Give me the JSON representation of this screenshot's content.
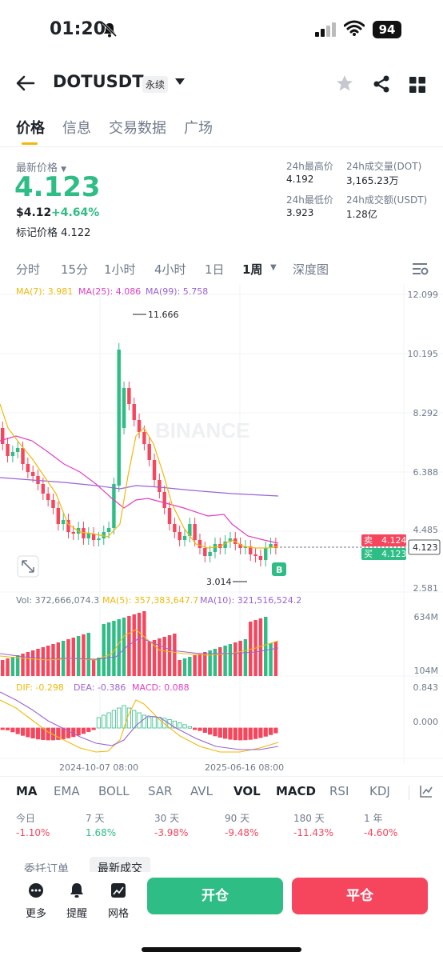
{
  "status": {
    "time": "01:20",
    "battery": "94"
  },
  "header": {
    "pair": "DOTUSDT",
    "badge": "永续"
  },
  "tabs": [
    {
      "label": "价格",
      "active": true
    },
    {
      "label": "信息",
      "active": false
    },
    {
      "label": "交易数据",
      "active": false
    },
    {
      "label": "广场",
      "active": false
    }
  ],
  "price": {
    "latest_label": "最新价格",
    "latest": "4.123",
    "usd": "$4.12",
    "change": "+4.64%",
    "mark_label": "标记价格",
    "mark": "4.122"
  },
  "stats": {
    "high_label": "24h最高价",
    "high": "4.192",
    "vol_dot_label": "24h成交量(DOT)",
    "vol_dot": "3,165.23万",
    "low_label": "24h最低价",
    "low": "3.923",
    "vol_usdt_label": "24h成交额(USDT)",
    "vol_usdt": "1.28亿"
  },
  "intervals": [
    {
      "label": "分时",
      "active": false
    },
    {
      "label": "15分",
      "active": false
    },
    {
      "label": "1小时",
      "active": false
    },
    {
      "label": "4小时",
      "active": false
    },
    {
      "label": "1日",
      "active": false
    },
    {
      "label": "1周",
      "active": true
    },
    {
      "label": "深度图",
      "active": false
    }
  ],
  "chart": {
    "ma7": "MA(7): 3.981",
    "ma25": "MA(25): 4.086",
    "ma99": "MA(99): 5.758",
    "y_ticks": [
      "12.099",
      "10.195",
      "8.292",
      "6.388",
      "4.485",
      "2.581"
    ],
    "high_marker": "11.666",
    "low_marker": "3.014",
    "watermark": "BINANCE",
    "sell_label": "卖",
    "sell_price": "4.124",
    "buy_label": "买",
    "buy_price": "4.123",
    "current_price": "4.123",
    "b_marker": "B",
    "vol_label": "Vol: 372,666,074.3",
    "vol_ma5": "MA(5): 357,383,647.7",
    "vol_ma10": "MA(10): 321,516,524.2",
    "vol_ticks": [
      "634M",
      "104M"
    ],
    "dif": "DIF: -0.298",
    "dea": "DEA: -0.386",
    "macd": "MACD: 0.088",
    "macd_ticks": [
      "0.843",
      "0.000"
    ],
    "x_ticks": [
      "2024-10-07 08:00",
      "2025-06-16 08:00"
    ],
    "colors": {
      "up": "#2ebd85",
      "down": "#f6465d",
      "ma7": "#f0b90b",
      "ma25": "#e040c0",
      "ma99": "#9a63d6"
    }
  },
  "indicators": [
    "MA",
    "EMA",
    "BOLL",
    "SAR",
    "AVL",
    "VOL",
    "MACD",
    "RSI",
    "KDJ"
  ],
  "performance": [
    {
      "label": "今日",
      "value": "-1.10%"
    },
    {
      "label": "7 天",
      "value": "1.68%"
    },
    {
      "label": "30 天",
      "value": "-3.98%"
    },
    {
      "label": "90 天",
      "value": "-9.48%"
    },
    {
      "label": "180 天",
      "value": "-11.43%"
    },
    {
      "label": "1 年",
      "value": "-4.60%"
    }
  ],
  "peek_tabs": [
    "委托订单",
    "最新成交"
  ],
  "bottom": {
    "more": "更多",
    "alert": "提醒",
    "grid": "网格",
    "open": "开仓",
    "close": "平仓"
  }
}
